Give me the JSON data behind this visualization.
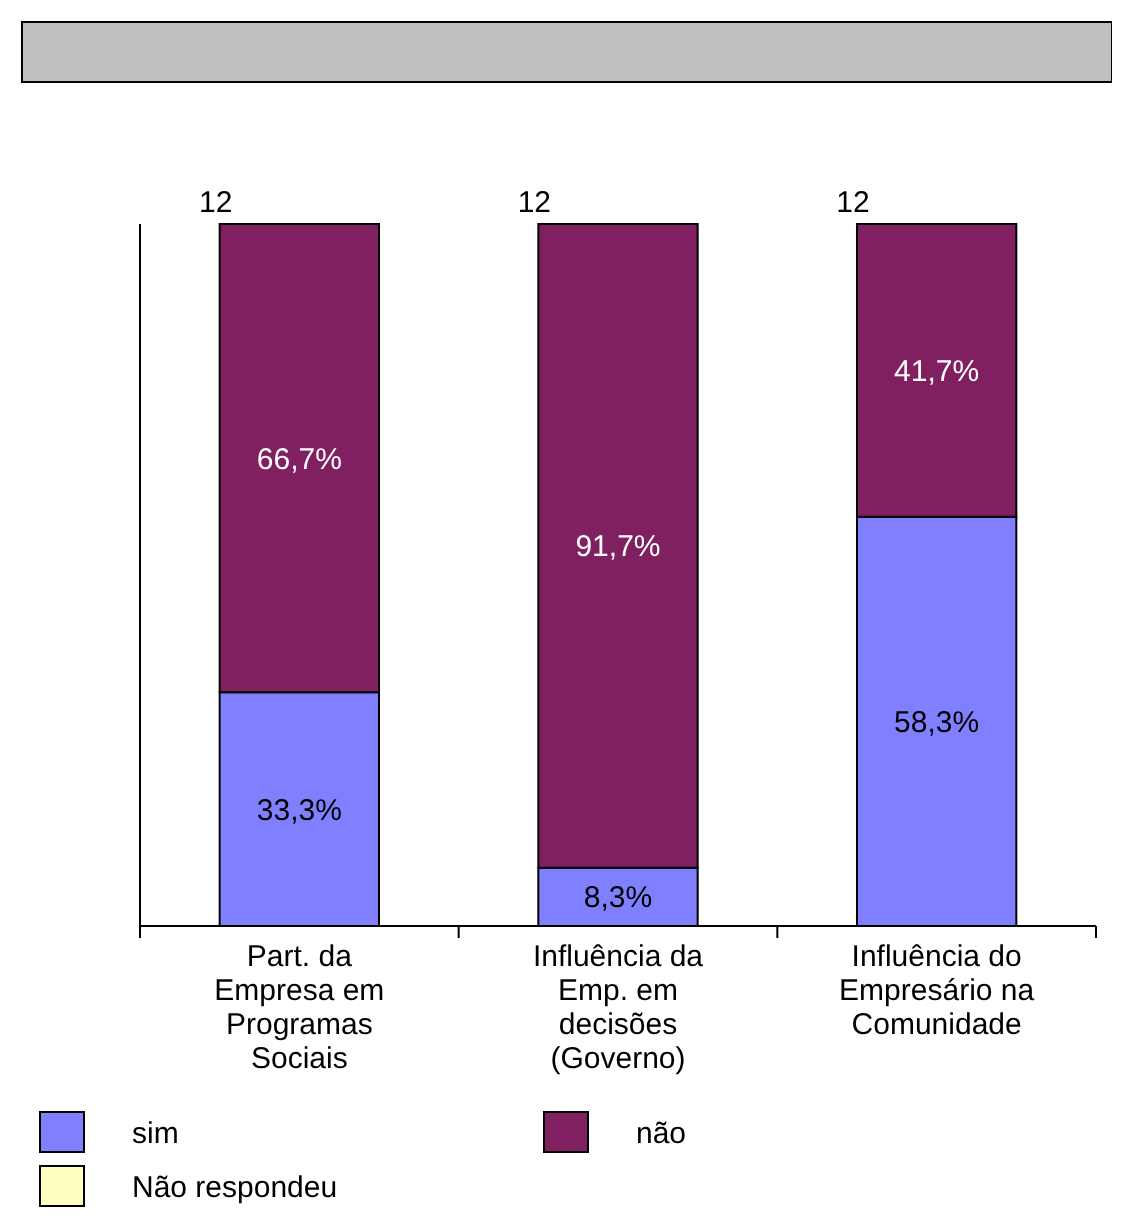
{
  "chart_data": {
    "type": "bar",
    "stacked": true,
    "categories": [
      "Part. da Empresa em Programas Sociais",
      "Influência da Emp. em decisões (Governo)",
      "Influência do Empresário na Comunidade"
    ],
    "series": [
      {
        "name": "sim",
        "color": "#8080ff",
        "values": [
          33.3,
          8.3,
          58.3
        ],
        "value_labels": [
          "33,3%",
          "8,3%",
          "58,3%"
        ]
      },
      {
        "name": "não",
        "color": "#802060",
        "values": [
          66.7,
          91.7,
          41.7
        ],
        "value_labels": [
          "66,7%",
          "91,7%",
          "41,7%"
        ]
      },
      {
        "name": "Não respondeu",
        "color": "#ffffc0",
        "values": [
          null,
          null,
          null
        ]
      }
    ],
    "annotations": [
      {
        "text": "12",
        "x": "Part. da Empresa em Programas Sociais",
        "y": 100
      },
      {
        "text": "12",
        "x": "Influência da Emp. em decisões (Governo)",
        "y": 100
      },
      {
        "text": "12",
        "x": "Influência do Empresário na Comunidade",
        "y": 100
      }
    ],
    "legend": "bottom"
  }
}
